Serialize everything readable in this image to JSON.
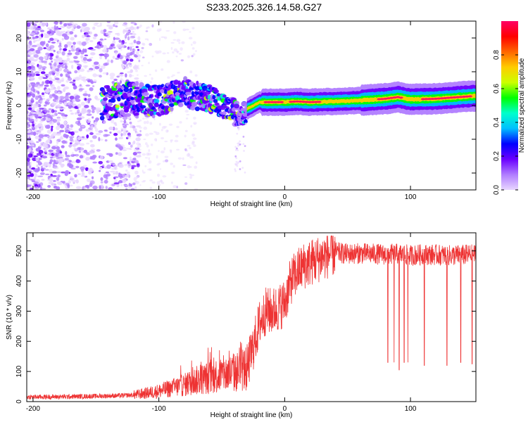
{
  "figure_title": "S233.2025.326.14.58.G27",
  "chart_data": [
    {
      "type": "heatmap",
      "title": "S233.2025.326.14.58.G27",
      "xlabel": "Height of straight line (km)",
      "ylabel": "Frequency (Hz)",
      "xlim": [
        -205,
        152
      ],
      "ylim": [
        -25,
        25
      ],
      "xticks": [
        -200,
        -100,
        0,
        100
      ],
      "yticks": [
        -20,
        -10,
        0,
        10,
        20
      ],
      "colorbar": {
        "label": "Normalized spectral amplitude",
        "range": [
          0,
          1
        ],
        "ticks": [
          "0.0",
          "0.2",
          "0.4",
          "0.6",
          "0.8"
        ],
        "colormap": [
          "#e8d6ff",
          "#b07cff",
          "#6a00ff",
          "#0000ff",
          "#00bfff",
          "#00ffcc",
          "#00ff00",
          "#ccff00",
          "#ffcc00",
          "#ff6600",
          "#ff0000",
          "#ff0066"
        ]
      },
      "ridge": {
        "description": "dominant frequency track",
        "x": [
          -145,
          -120,
          -100,
          -90,
          -80,
          -70,
          -60,
          -50,
          -40,
          -35,
          -30,
          -25,
          -20,
          -10,
          0,
          10,
          20,
          40,
          60,
          80,
          90,
          100,
          120,
          150
        ],
        "y": [
          1,
          2,
          1,
          3,
          4,
          3,
          2,
          0.5,
          -2,
          -3,
          -1,
          0,
          1,
          1,
          1,
          1.2,
          1,
          1.2,
          1.5,
          2,
          2.5,
          1.8,
          2,
          2.8
        ]
      }
    },
    {
      "type": "line",
      "xlabel": "Height of straight line (km)",
      "ylabel": "SNR (10 * v/v)",
      "xlim": [
        -205,
        152
      ],
      "ylim": [
        0,
        560
      ],
      "xticks": [
        -200,
        -100,
        0,
        100
      ],
      "yticks": [
        0,
        100,
        200,
        300,
        400,
        500
      ],
      "series": [
        {
          "name": "SNR",
          "color": "#ee3333",
          "x": [
            -205,
            -180,
            -150,
            -130,
            -120,
            -110,
            -100,
            -90,
            -80,
            -70,
            -60,
            -50,
            -40,
            -30,
            -25,
            -20,
            -15,
            -10,
            -5,
            0,
            5,
            10,
            15,
            20,
            30,
            40,
            50,
            60,
            70,
            80,
            90,
            100,
            110,
            120,
            130,
            140,
            150
          ],
          "values": [
            15,
            16,
            18,
            20,
            22,
            28,
            35,
            45,
            55,
            70,
            80,
            90,
            95,
            110,
            180,
            260,
            300,
            300,
            310,
            330,
            400,
            430,
            450,
            460,
            480,
            495,
            490,
            492,
            490,
            488,
            490,
            485,
            488,
            487,
            485,
            486,
            488
          ]
        }
      ],
      "dropouts": {
        "description": "narrow downward spikes",
        "x": [
          82,
          87,
          91,
          95,
          98,
          111,
          129,
          140,
          149
        ],
        "min_values": [
          130,
          130,
          105,
          130,
          130,
          120,
          120,
          130,
          125
        ]
      }
    }
  ]
}
